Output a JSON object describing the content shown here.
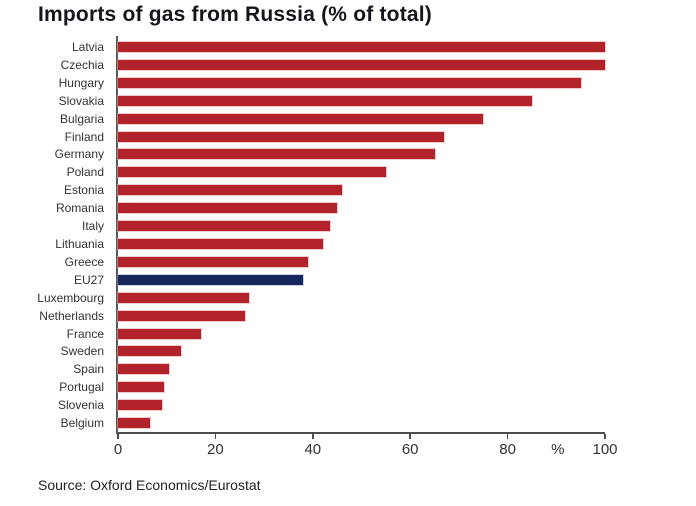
{
  "title": "Imports of gas from Russia (% of total)",
  "source": "Source: Oxford Economics/Eurostat",
  "colors": {
    "bar": "#b2222a",
    "highlight_bar": "#16275c",
    "axis_line": "#4d4d4d",
    "label_text": "#333333",
    "title_text": "#15151d"
  },
  "x_axis": {
    "tick_labels": [
      "0",
      "20",
      "40",
      "60",
      "80",
      "100"
    ],
    "unit_label": "%"
  },
  "chart_data": {
    "type": "bar",
    "orientation": "horizontal",
    "title": "Imports of gas from Russia (% of total)",
    "categories": [
      "Latvia",
      "Czechia",
      "Hungary",
      "Slovakia",
      "Bulgaria",
      "Finland",
      "Germany",
      "Poland",
      "Estonia",
      "Romania",
      "Italy",
      "Lithuania",
      "Greece",
      "EU27",
      "Luxembourg",
      "Netherlands",
      "France",
      "Sweden",
      "Spain",
      "Portugal",
      "Slovenia",
      "Belgium"
    ],
    "values": [
      100,
      100,
      95,
      85,
      75,
      67,
      65,
      55,
      46,
      45,
      43.5,
      42,
      39,
      38,
      27,
      26,
      17,
      13,
      10.5,
      9.5,
      9,
      6.5
    ],
    "highlight_category": "EU27",
    "xlabel": "%",
    "ylabel": "",
    "xlim": [
      0,
      100
    ],
    "xticks": [
      0,
      20,
      40,
      60,
      80,
      100
    ],
    "unit_label_x_position": 90.3,
    "grid": false,
    "legend": false,
    "source": "Source: Oxford Economics/Eurostat"
  }
}
